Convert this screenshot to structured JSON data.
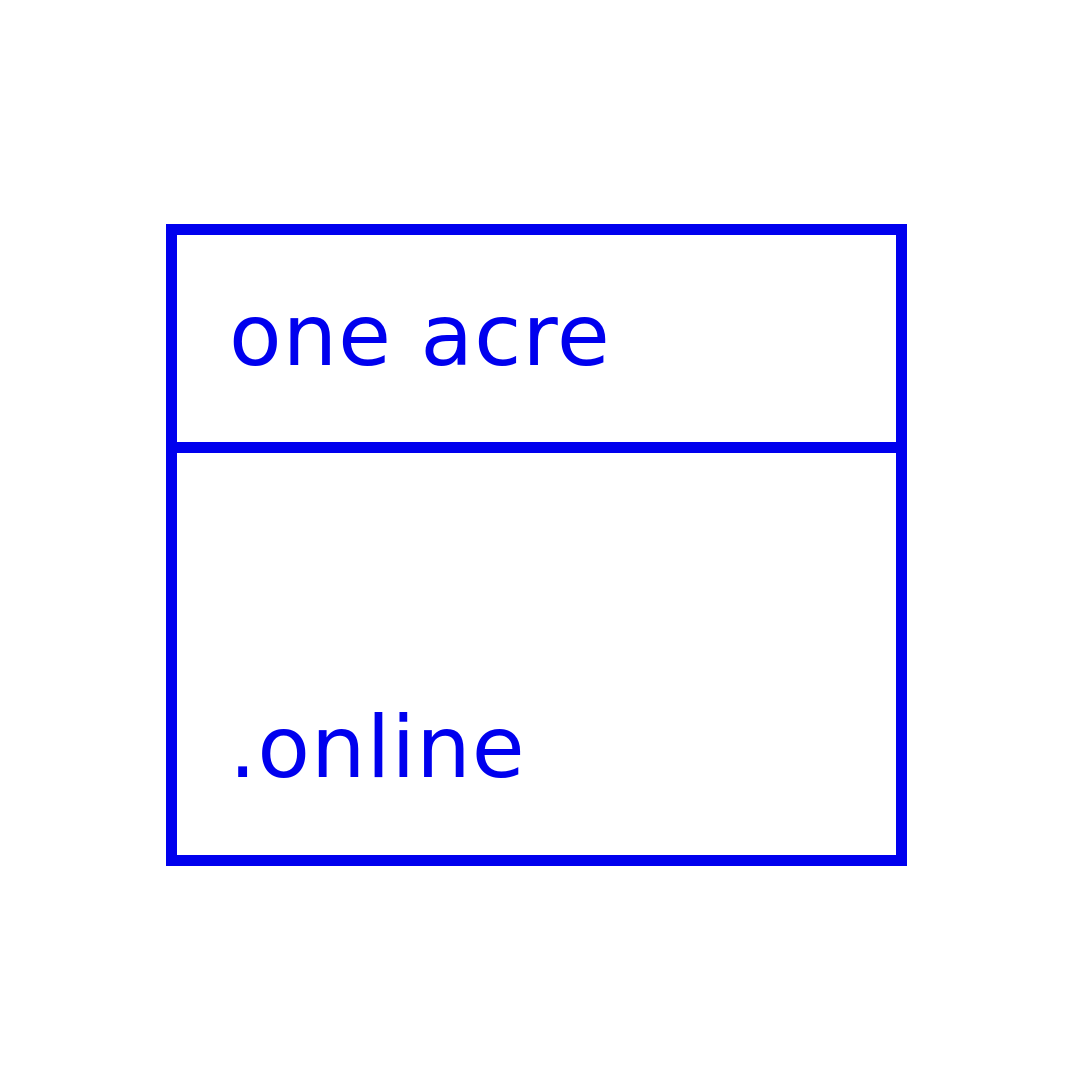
{
  "logo": {
    "line_one": "one acre",
    "line_two": ".online",
    "color": "#0000ee",
    "background": "#ffffff"
  }
}
